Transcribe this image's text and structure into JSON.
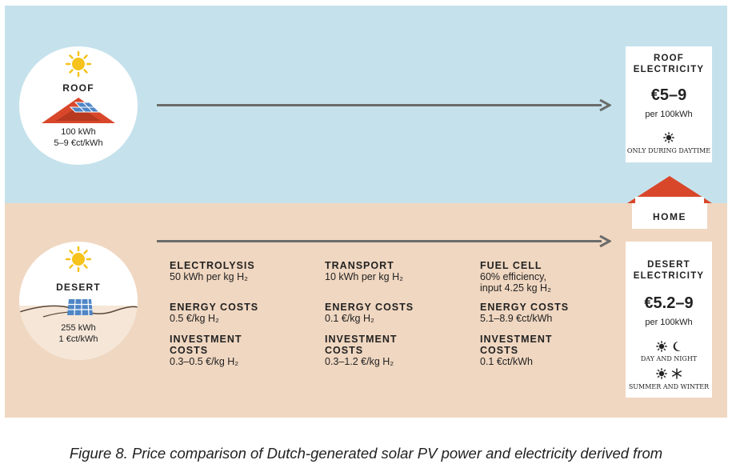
{
  "roof": {
    "title": "ROOF",
    "line1": "100 kWh",
    "line2": "5–9 €ct/kWh"
  },
  "desert": {
    "title": "DESERT",
    "line1": "255 kWh",
    "line2": "1 €ct/kWh"
  },
  "columns": [
    {
      "head1": "ELECTROLYSIS",
      "text1a": "50 kWh per kg H₂",
      "text1b": "",
      "head2": "ENERGY COSTS",
      "text2": "0.5 €/kg H₂",
      "head3a": "INVESTMENT",
      "head3b": "COSTS",
      "text3": "0.3–0.5 €/kg H₂"
    },
    {
      "head1": "TRANSPORT",
      "text1a": "10 kWh per kg H₂",
      "text1b": "",
      "head2": "ENERGY COSTS",
      "text2": "0.1 €/kg H₂",
      "head3a": "INVESTMENT",
      "head3b": "COSTS",
      "text3": "0.3–1.2 €/kg H₂"
    },
    {
      "head1": "FUEL CELL",
      "text1a": "60% efficiency,",
      "text1b": "input 4.25 kg H₂",
      "head2": "ENERGY COSTS",
      "text2": "5.1–8.9 €ct/kWh",
      "head3a": "INVESTMENT",
      "head3b": "COSTS",
      "text3": "0.1 €ct/kWh"
    }
  ],
  "roof_card": {
    "title1": "ROOF",
    "title2": "ELECTRICITY",
    "price": "€5–9",
    "unit": "per 100kWh",
    "note": "ONLY DURING DAYTIME"
  },
  "desert_card": {
    "title1": "DESERT",
    "title2": "ELECTRICITY",
    "price": "€5.2–9",
    "unit": "per 100kWh",
    "note1": "DAY AND NIGHT",
    "note2": "SUMMER AND WINTER"
  },
  "home": {
    "label": "HOME"
  },
  "caption": "Figure 8. Price comparison of Dutch-generated solar PV power and electricity derived from",
  "colors": {
    "sky": "#c5e2ec",
    "sand": "#f0d7c1",
    "roof_red": "#d9472b",
    "panel_blue": "#4f86c6",
    "sun": "#f6c21c",
    "arrow": "#6b6b6b"
  }
}
